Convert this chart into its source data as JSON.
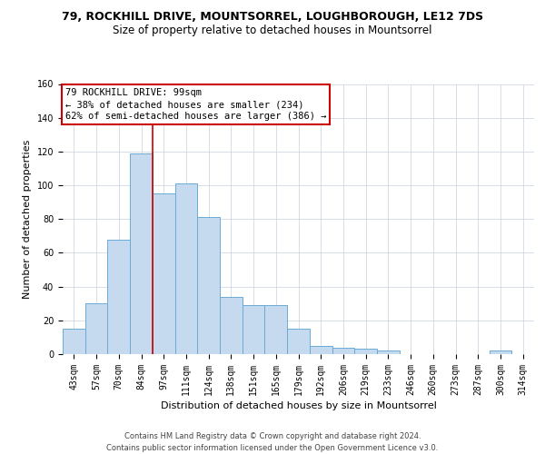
{
  "title_line1": "79, ROCKHILL DRIVE, MOUNTSORREL, LOUGHBOROUGH, LE12 7DS",
  "title_line2": "Size of property relative to detached houses in Mountsorrel",
  "xlabel": "Distribution of detached houses by size in Mountsorrel",
  "ylabel": "Number of detached properties",
  "footer": "Contains HM Land Registry data © Crown copyright and database right 2024.\nContains public sector information licensed under the Open Government Licence v3.0.",
  "bar_labels": [
    "43sqm",
    "57sqm",
    "70sqm",
    "84sqm",
    "97sqm",
    "111sqm",
    "124sqm",
    "138sqm",
    "151sqm",
    "165sqm",
    "179sqm",
    "192sqm",
    "206sqm",
    "219sqm",
    "233sqm",
    "246sqm",
    "260sqm",
    "273sqm",
    "287sqm",
    "300sqm",
    "314sqm"
  ],
  "bar_heights": [
    15,
    30,
    68,
    119,
    95,
    101,
    81,
    34,
    29,
    29,
    15,
    5,
    4,
    3,
    2,
    0,
    0,
    0,
    0,
    2,
    0
  ],
  "bar_color": "#c5daef",
  "bar_edge_color": "#6aaad4",
  "ylim": [
    0,
    160
  ],
  "yticks": [
    0,
    20,
    40,
    60,
    80,
    100,
    120,
    140,
    160
  ],
  "grid_color": "#d0d8e4",
  "vline_color": "#cc0000",
  "vline_pos": 3.5,
  "annotation_line1": "79 ROCKHILL DRIVE: 99sqm",
  "annotation_line2": "← 38% of detached houses are smaller (234)",
  "annotation_line3": "62% of semi-detached houses are larger (386) →",
  "annotation_box_facecolor": "white",
  "annotation_box_edgecolor": "#cc0000",
  "title_fontsize": 9,
  "subtitle_fontsize": 8.5,
  "xlabel_fontsize": 8,
  "ylabel_fontsize": 8,
  "tick_fontsize": 7,
  "footer_fontsize": 6,
  "annot_fontsize": 7.5
}
